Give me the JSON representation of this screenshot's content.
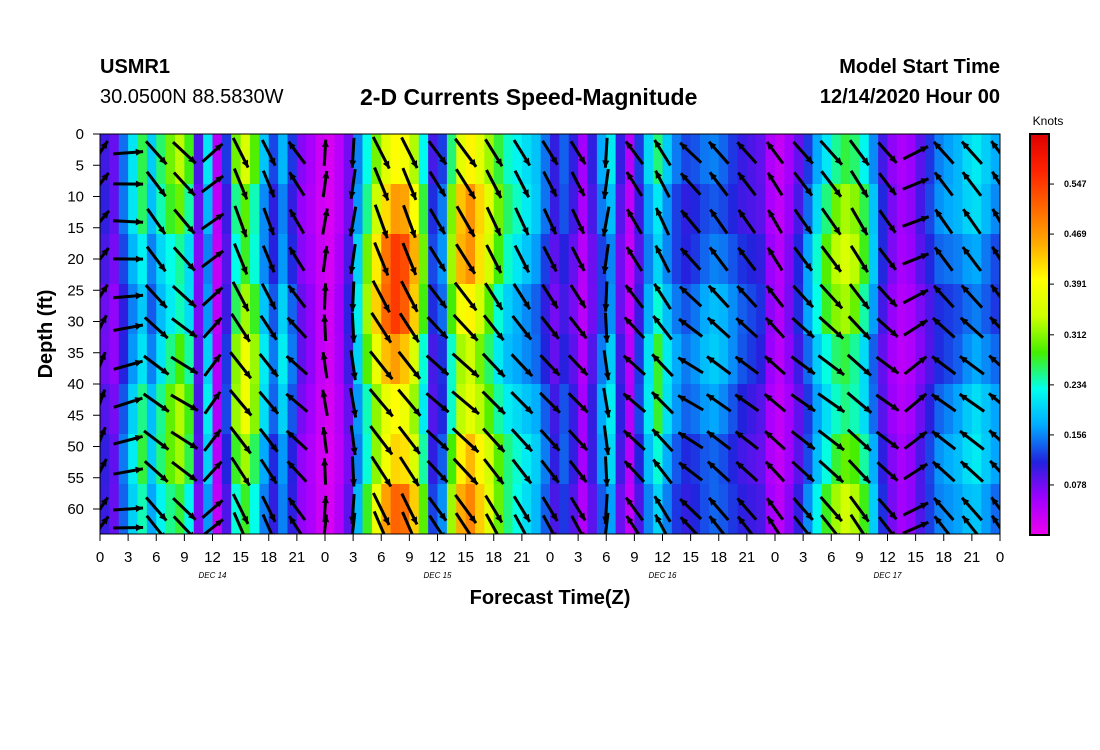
{
  "header": {
    "station": "USMR1",
    "coords": "30.0500N 88.5830W",
    "title": "2-D Currents Speed-Magnitude",
    "start_label": "Model Start Time",
    "start_value": "12/14/2020 Hour 00"
  },
  "colors": {
    "scale": [
      "#ee00ee",
      "#a000ff",
      "#2222dd",
      "#00aaff",
      "#00ffee",
      "#44ee00",
      "#ccff00",
      "#ffff00",
      "#ffaa00",
      "#ff6600",
      "#ff2200",
      "#dd0000"
    ]
  },
  "chart_data": {
    "type": "heatmap",
    "title": "2-D Currents Speed-Magnitude",
    "xlabel": "Forecast Time(Z)",
    "ylabel": "Depth (ft)",
    "xlim": [
      0,
      96
    ],
    "ylim": [
      0,
      64
    ],
    "x_tick_labels": [
      "0",
      "3",
      "6",
      "9",
      "12",
      "15",
      "18",
      "21",
      "0",
      "3",
      "6",
      "9",
      "12",
      "15",
      "18",
      "21",
      "0",
      "3",
      "6",
      "9",
      "12",
      "15",
      "18",
      "21",
      "0",
      "3",
      "6",
      "9",
      "12",
      "15",
      "18",
      "21",
      "0"
    ],
    "y_tick_labels": [
      "0",
      "5",
      "10",
      "15",
      "20",
      "25",
      "30",
      "35",
      "40",
      "45",
      "50",
      "55",
      "60"
    ],
    "date_labels": [
      {
        "label": "DEC 14",
        "hour": 12
      },
      {
        "label": "DEC 15",
        "hour": 36
      },
      {
        "label": "DEC 16",
        "hour": 60
      },
      {
        "label": "DEC 17",
        "hour": 84
      }
    ],
    "colorbar": {
      "title": "Knots",
      "min": 0,
      "max": 0.625,
      "ticks": [
        "0.547",
        "0.469",
        "0.391",
        "0.312",
        "0.234",
        "0.156",
        "0.078"
      ]
    },
    "speed_profile_knots": [
      {
        "hour": 0,
        "speed": 0.1
      },
      {
        "hour": 1,
        "speed": 0.08
      },
      {
        "hour": 2,
        "speed": 0.14
      },
      {
        "hour": 3,
        "speed": 0.2
      },
      {
        "hour": 4,
        "speed": 0.25
      },
      {
        "hour": 5,
        "speed": 0.18
      },
      {
        "hour": 6,
        "speed": 0.24
      },
      {
        "hour": 7,
        "speed": 0.28
      },
      {
        "hour": 8,
        "speed": 0.31
      },
      {
        "hour": 9,
        "speed": 0.26
      },
      {
        "hour": 10,
        "speed": 0.09
      },
      {
        "hour": 11,
        "speed": 0.2
      },
      {
        "hour": 12,
        "speed": 0.04
      },
      {
        "hour": 13,
        "speed": 0.12
      },
      {
        "hour": 14,
        "speed": 0.3
      },
      {
        "hour": 15,
        "speed": 0.36
      },
      {
        "hour": 16,
        "speed": 0.3
      },
      {
        "hour": 17,
        "speed": 0.2
      },
      {
        "hour": 18,
        "speed": 0.14
      },
      {
        "hour": 19,
        "speed": 0.2
      },
      {
        "hour": 20,
        "speed": 0.14
      },
      {
        "hour": 21,
        "speed": 0.08
      },
      {
        "hour": 22,
        "speed": 0.06
      },
      {
        "hour": 23,
        "speed": 0.03
      },
      {
        "hour": 24,
        "speed": 0.02
      },
      {
        "hour": 25,
        "speed": 0.05
      },
      {
        "hour": 26,
        "speed": 0.1
      },
      {
        "hour": 27,
        "speed": 0.2
      },
      {
        "hour": 28,
        "speed": 0.3
      },
      {
        "hour": 29,
        "speed": 0.4
      },
      {
        "hour": 30,
        "speed": 0.48
      },
      {
        "hour": 31,
        "speed": 0.52
      },
      {
        "hour": 32,
        "speed": 0.5
      },
      {
        "hour": 33,
        "speed": 0.42
      },
      {
        "hour": 34,
        "speed": 0.28
      },
      {
        "hour": 35,
        "speed": 0.12
      },
      {
        "hour": 36,
        "speed": 0.15
      },
      {
        "hour": 37,
        "speed": 0.3
      },
      {
        "hour": 38,
        "speed": 0.42
      },
      {
        "hour": 39,
        "speed": 0.45
      },
      {
        "hour": 40,
        "speed": 0.4
      },
      {
        "hour": 41,
        "speed": 0.34
      },
      {
        "hour": 42,
        "speed": 0.28
      },
      {
        "hour": 43,
        "speed": 0.24
      },
      {
        "hour": 44,
        "speed": 0.22
      },
      {
        "hour": 45,
        "speed": 0.2
      },
      {
        "hour": 46,
        "speed": 0.18
      },
      {
        "hour": 47,
        "speed": 0.14
      },
      {
        "hour": 48,
        "speed": 0.1
      },
      {
        "hour": 49,
        "speed": 0.13
      },
      {
        "hour": 50,
        "speed": 0.1
      },
      {
        "hour": 51,
        "speed": 0.05
      },
      {
        "hour": 52,
        "speed": 0.1
      },
      {
        "hour": 53,
        "speed": 0.16
      },
      {
        "hour": 54,
        "speed": 0.2
      },
      {
        "hour": 55,
        "speed": 0.1
      },
      {
        "hour": 56,
        "speed": 0.04
      },
      {
        "hour": 57,
        "speed": 0.12
      },
      {
        "hour": 58,
        "speed": 0.2
      },
      {
        "hour": 59,
        "speed": 0.26
      },
      {
        "hour": 60,
        "speed": 0.2
      },
      {
        "hour": 61,
        "speed": 0.16
      },
      {
        "hour": 62,
        "speed": 0.14
      },
      {
        "hour": 63,
        "speed": 0.15
      },
      {
        "hour": 64,
        "speed": 0.17
      },
      {
        "hour": 65,
        "speed": 0.18
      },
      {
        "hour": 66,
        "speed": 0.17
      },
      {
        "hour": 67,
        "speed": 0.15
      },
      {
        "hour": 68,
        "speed": 0.13
      },
      {
        "hour": 69,
        "speed": 0.12
      },
      {
        "hour": 70,
        "speed": 0.11
      },
      {
        "hour": 71,
        "speed": 0.06
      },
      {
        "hour": 72,
        "speed": 0.04
      },
      {
        "hour": 73,
        "speed": 0.07
      },
      {
        "hour": 74,
        "speed": 0.11
      },
      {
        "hour": 75,
        "speed": 0.16
      },
      {
        "hour": 76,
        "speed": 0.22
      },
      {
        "hour": 77,
        "speed": 0.27
      },
      {
        "hour": 78,
        "speed": 0.31
      },
      {
        "hour": 79,
        "speed": 0.33
      },
      {
        "hour": 80,
        "speed": 0.31
      },
      {
        "hour": 81,
        "speed": 0.26
      },
      {
        "hour": 82,
        "speed": 0.18
      },
      {
        "hour": 83,
        "speed": 0.11
      },
      {
        "hour": 84,
        "speed": 0.07
      },
      {
        "hour": 85,
        "speed": 0.05
      },
      {
        "hour": 86,
        "speed": 0.06
      },
      {
        "hour": 87,
        "speed": 0.09
      },
      {
        "hour": 88,
        "speed": 0.12
      },
      {
        "hour": 89,
        "speed": 0.15
      },
      {
        "hour": 90,
        "speed": 0.16
      },
      {
        "hour": 91,
        "speed": 0.17
      },
      {
        "hour": 92,
        "speed": 0.19
      },
      {
        "hour": 93,
        "speed": 0.2
      },
      {
        "hour": 94,
        "speed": 0.18
      },
      {
        "hour": 95,
        "speed": 0.16
      },
      {
        "hour": 96,
        "speed": 0.15
      }
    ],
    "direction_profile_deg": [
      {
        "hour": 0,
        "dir": 30
      },
      {
        "hour": 6,
        "dir": 135
      },
      {
        "hour": 9,
        "dir": 130
      },
      {
        "hour": 12,
        "dir": 45
      },
      {
        "hour": 15,
        "dir": 150
      },
      {
        "hour": 18,
        "dir": 150
      },
      {
        "hour": 21,
        "dir": 320
      },
      {
        "hour": 24,
        "dir": 0
      },
      {
        "hour": 27,
        "dir": 180
      },
      {
        "hour": 30,
        "dir": 150
      },
      {
        "hour": 33,
        "dir": 150
      },
      {
        "hour": 36,
        "dir": 140
      },
      {
        "hour": 39,
        "dir": 140
      },
      {
        "hour": 42,
        "dir": 145
      },
      {
        "hour": 45,
        "dir": 145
      },
      {
        "hour": 48,
        "dir": 145
      },
      {
        "hour": 51,
        "dir": 145
      },
      {
        "hour": 54,
        "dir": 180
      },
      {
        "hour": 57,
        "dir": 320
      },
      {
        "hour": 60,
        "dir": 325
      },
      {
        "hour": 63,
        "dir": 310
      },
      {
        "hour": 66,
        "dir": 315
      },
      {
        "hour": 69,
        "dir": 315
      },
      {
        "hour": 72,
        "dir": 320
      },
      {
        "hour": 75,
        "dir": 135
      },
      {
        "hour": 78,
        "dir": 135
      },
      {
        "hour": 81,
        "dir": 140
      },
      {
        "hour": 84,
        "dir": 135
      },
      {
        "hour": 87,
        "dir": 60
      },
      {
        "hour": 90,
        "dir": 315
      },
      {
        "hour": 93,
        "dir": 315
      },
      {
        "hour": 96,
        "dir": 320
      }
    ],
    "arrow_times_hours": [
      0,
      3,
      6,
      9,
      12,
      15,
      18,
      21,
      24,
      27,
      30,
      33,
      36,
      39,
      42,
      45,
      48,
      51,
      54,
      57,
      60,
      63,
      66,
      69,
      72,
      75,
      78,
      81,
      84,
      87,
      90,
      93,
      96
    ],
    "arrow_depths_ft": [
      3,
      8,
      14,
      20,
      26,
      31,
      37,
      43,
      49,
      54,
      60,
      63
    ]
  }
}
